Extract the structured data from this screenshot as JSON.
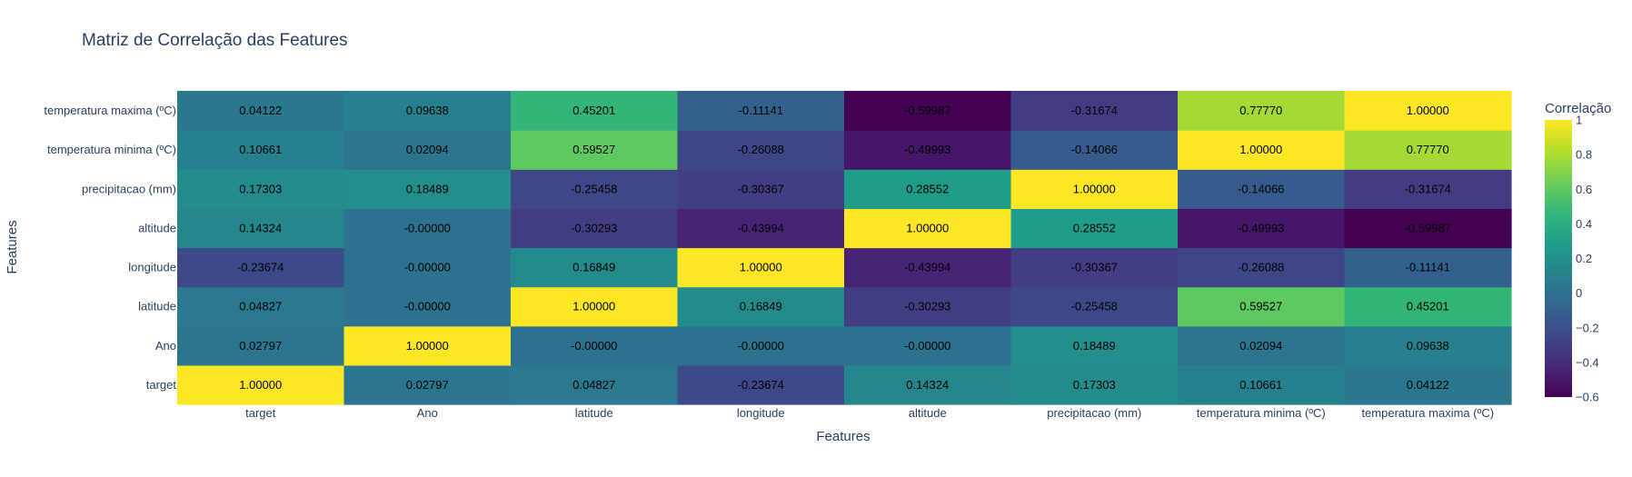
{
  "chart_data": {
    "type": "heatmap",
    "title": "Matriz de Correlação das Features",
    "xlabel": "Features",
    "ylabel": "Features",
    "x": [
      "target",
      "Ano",
      "latitude",
      "longitude",
      "altitude",
      "precipitacao (mm)",
      "temperatura minima (ºC)",
      "temperatura maxima (ºC)"
    ],
    "y": [
      "target",
      "Ano",
      "latitude",
      "longitude",
      "altitude",
      "precipitacao (mm)",
      "temperatura minima (ºC)",
      "temperatura maxima (ºC)"
    ],
    "z": [
      [
        1.0,
        0.02797,
        0.04827,
        -0.23674,
        0.14324,
        0.17303,
        0.10661,
        0.04122
      ],
      [
        0.02797,
        1.0,
        -0.0,
        -0.0,
        -0.0,
        0.18489,
        0.02094,
        0.09638
      ],
      [
        0.04827,
        -0.0,
        1.0,
        0.16849,
        -0.30293,
        -0.25458,
        0.59527,
        0.45201
      ],
      [
        -0.23674,
        -0.0,
        0.16849,
        1.0,
        -0.43994,
        -0.30367,
        -0.26088,
        -0.11141
      ],
      [
        0.14324,
        -0.0,
        -0.30293,
        -0.43994,
        1.0,
        0.28552,
        -0.49993,
        -0.59987
      ],
      [
        0.17303,
        0.18489,
        -0.25458,
        -0.30367,
        0.28552,
        1.0,
        -0.14066,
        -0.31674
      ],
      [
        0.10661,
        0.02094,
        0.59527,
        -0.26088,
        -0.49993,
        -0.14066,
        1.0,
        0.7777
      ],
      [
        0.04122,
        0.09638,
        0.45201,
        -0.11141,
        -0.59987,
        -0.31674,
        0.7777,
        1.0
      ]
    ],
    "text": [
      [
        "1.00000",
        "0.02797",
        "0.04827",
        "-0.23674",
        "0.14324",
        "0.17303",
        "0.10661",
        "0.04122"
      ],
      [
        "0.02797",
        "1.00000",
        "-0.00000",
        "-0.00000",
        "-0.00000",
        "0.18489",
        "0.02094",
        "0.09638"
      ],
      [
        "0.04827",
        "-0.00000",
        "1.00000",
        "0.16849",
        "-0.30293",
        "-0.25458",
        "0.59527",
        "0.45201"
      ],
      [
        "-0.23674",
        "-0.00000",
        "0.16849",
        "1.00000",
        "-0.43994",
        "-0.30367",
        "-0.26088",
        "-0.11141"
      ],
      [
        "0.14324",
        "-0.00000",
        "-0.30293",
        "-0.43994",
        "1.00000",
        "0.28552",
        "-0.49993",
        "-0.59987"
      ],
      [
        "0.17303",
        "0.18489",
        "-0.25458",
        "-0.30367",
        "0.28552",
        "1.00000",
        "-0.14066",
        "-0.31674"
      ],
      [
        "0.10661",
        "0.02094",
        "0.59527",
        "-0.26088",
        "-0.49993",
        "-0.14066",
        "1.00000",
        "0.77770"
      ],
      [
        "0.04122",
        "0.09638",
        "0.45201",
        "-0.11141",
        "-0.59987",
        "-0.31674",
        "0.77770",
        "1.00000"
      ]
    ],
    "colorscale": "Viridis",
    "zmin": -0.6,
    "zmax": 1.0,
    "colorbar": {
      "title": "Correlação",
      "ticks": [
        -0.6,
        -0.4,
        -0.2,
        0,
        0.2,
        0.4,
        0.6,
        0.8,
        1
      ],
      "tick_labels": [
        "−0.6",
        "−0.4",
        "−0.2",
        "0",
        "0.2",
        "0.4",
        "0.6",
        "0.8",
        "1"
      ]
    }
  }
}
